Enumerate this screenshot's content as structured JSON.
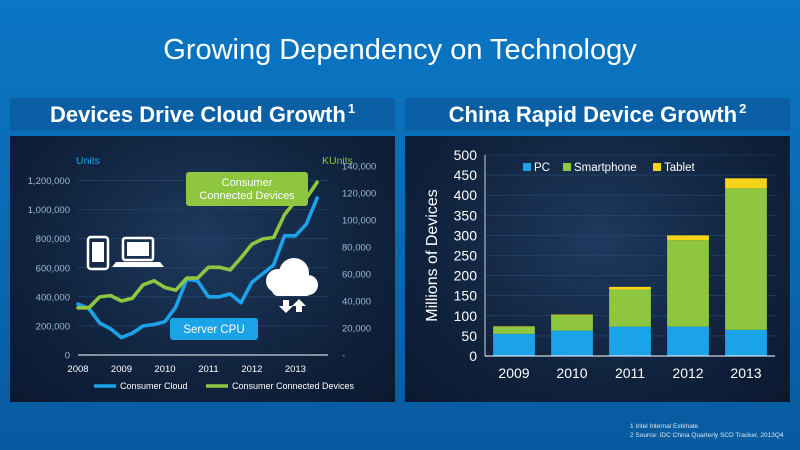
{
  "title": "Growing Dependency on Technology",
  "left_panel": {
    "header": "Devices Drive Cloud Growth",
    "header_sup": "1",
    "callouts": {
      "consumer": "Consumer Connected Devices",
      "server": "Server CPU"
    },
    "icons": [
      "phone-icon",
      "laptop-icon",
      "cloud-icon"
    ]
  },
  "right_panel": {
    "header": "China Rapid Device Growth",
    "header_sup": "2"
  },
  "footnotes": [
    "1 Intel Internal Estimate",
    "2 Source: IDC China Quarterly SCD Tracker, 2013Q4"
  ],
  "colors": {
    "blue": "#1aa3e8",
    "green": "#8ec63f",
    "yellow": "#f7d417"
  },
  "chart_data": [
    {
      "type": "line",
      "title": "Devices Drive Cloud Growth",
      "y_left_label": "Units",
      "y_right_label": "KUnits",
      "y_left_ticks": [
        "0",
        "200,000",
        "400,000",
        "600,000",
        "800,000",
        "1,000,000",
        "1,200,000"
      ],
      "y_right_ticks": [
        "-",
        "20,000",
        "40,000",
        "60,000",
        "80,000",
        "100,000",
        "120,000",
        "140,000"
      ],
      "x_ticks": [
        "2008",
        "2009",
        "2010",
        "2011",
        "2012",
        "2013"
      ],
      "ylim_left": [
        0,
        1300000
      ],
      "ylim_right": [
        0,
        140000
      ],
      "xlim": [
        2008,
        2013.75
      ],
      "series": [
        {
          "name": "Consumer Cloud",
          "axis": "left",
          "color": "#1aa3e8",
          "x": [
            2008.0,
            2008.25,
            2008.5,
            2008.75,
            2009.0,
            2009.25,
            2009.5,
            2009.75,
            2010.0,
            2010.25,
            2010.5,
            2010.75,
            2011.0,
            2011.25,
            2011.5,
            2011.75,
            2012.0,
            2012.25,
            2012.5,
            2012.75,
            2013.0,
            2013.25,
            2013.5
          ],
          "values": [
            350000,
            320000,
            220000,
            180000,
            120000,
            150000,
            200000,
            210000,
            230000,
            330000,
            520000,
            510000,
            400000,
            400000,
            420000,
            360000,
            500000,
            560000,
            620000,
            820000,
            820000,
            900000,
            1080000
          ]
        },
        {
          "name": "Consumer Connected Devices",
          "axis": "right",
          "color": "#8ec63f",
          "x": [
            2008.0,
            2008.25,
            2008.5,
            2008.75,
            2009.0,
            2009.25,
            2009.5,
            2009.75,
            2010.0,
            2010.25,
            2010.5,
            2010.75,
            2011.0,
            2011.25,
            2011.5,
            2011.75,
            2012.0,
            2012.25,
            2012.5,
            2012.75,
            2013.0,
            2013.25,
            2013.5
          ],
          "values": [
            35000,
            35000,
            43000,
            44000,
            40000,
            42000,
            52000,
            55000,
            50000,
            48000,
            57000,
            57000,
            65000,
            65000,
            63000,
            72000,
            82000,
            86000,
            87000,
            104000,
            114000,
            116000,
            128000
          ]
        }
      ]
    },
    {
      "type": "bar",
      "stacked": true,
      "title": "China Rapid Device Growth",
      "ylabel": "Millions of Devices",
      "categories": [
        "2009",
        "2010",
        "2011",
        "2012",
        "2013"
      ],
      "ylim": [
        0,
        500
      ],
      "y_ticks": [
        "0",
        "50",
        "100",
        "150",
        "200",
        "250",
        "300",
        "350",
        "400",
        "450",
        "500"
      ],
      "series": [
        {
          "name": "PC",
          "color": "#1aa3e8",
          "values": [
            55,
            63,
            73,
            73,
            65
          ]
        },
        {
          "name": "Smartphone",
          "color": "#8ec63f",
          "values": [
            18,
            38,
            92,
            215,
            352
          ]
        },
        {
          "name": "Tablet",
          "color": "#f7d417",
          "values": [
            1,
            2,
            7,
            12,
            25
          ]
        }
      ]
    }
  ]
}
